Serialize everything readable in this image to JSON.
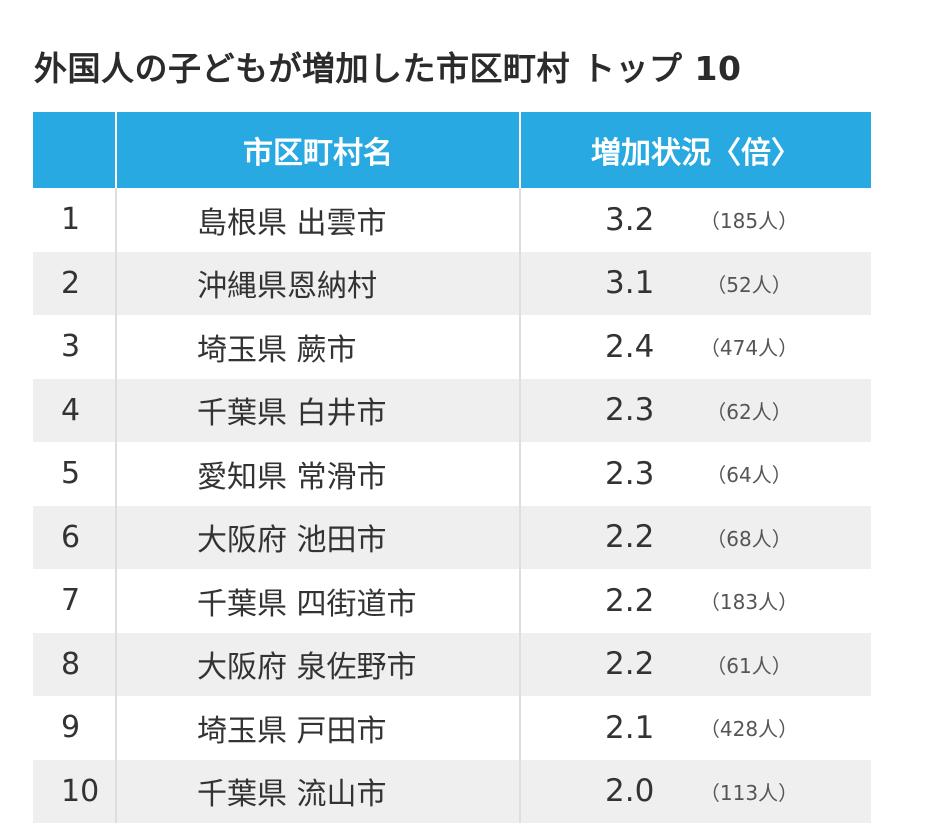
{
  "chart_data": {
    "type": "table",
    "title": "外国人の子どもが増加した市区町村 トップ 10",
    "columns": [
      "",
      "市区町村名",
      "増加状況〈倍〉"
    ],
    "rows": [
      {
        "rank": "1",
        "name": "島根県 出雲市",
        "ratio": "3.2",
        "count": "（185人）"
      },
      {
        "rank": "2",
        "name": "沖縄県恩納村",
        "ratio": "3.1",
        "count": "（52人）"
      },
      {
        "rank": "3",
        "name": "埼玉県 蕨市",
        "ratio": "2.4",
        "count": "（474人）"
      },
      {
        "rank": "4",
        "name": "千葉県 白井市",
        "ratio": "2.3",
        "count": "（62人）"
      },
      {
        "rank": "5",
        "name": "愛知県 常滑市",
        "ratio": "2.3",
        "count": "（64人）"
      },
      {
        "rank": "6",
        "name": "大阪府 池田市",
        "ratio": "2.2",
        "count": "（68人）"
      },
      {
        "rank": "7",
        "name": "千葉県 四街道市",
        "ratio": "2.2",
        "count": "（183人）"
      },
      {
        "rank": "8",
        "name": "大阪府 泉佐野市",
        "ratio": "2.2",
        "count": "（61人）"
      },
      {
        "rank": "9",
        "name": "埼玉県 戸田市",
        "ratio": "2.1",
        "count": "（428人）"
      },
      {
        "rank": "10",
        "name": "千葉県 流山市",
        "ratio": "2.0",
        "count": "（113人）"
      }
    ]
  },
  "colors": {
    "header_bg": "#29a9e1",
    "header_text": "#ffffff",
    "alt_row_bg": "#efefef",
    "text": "#333333"
  }
}
